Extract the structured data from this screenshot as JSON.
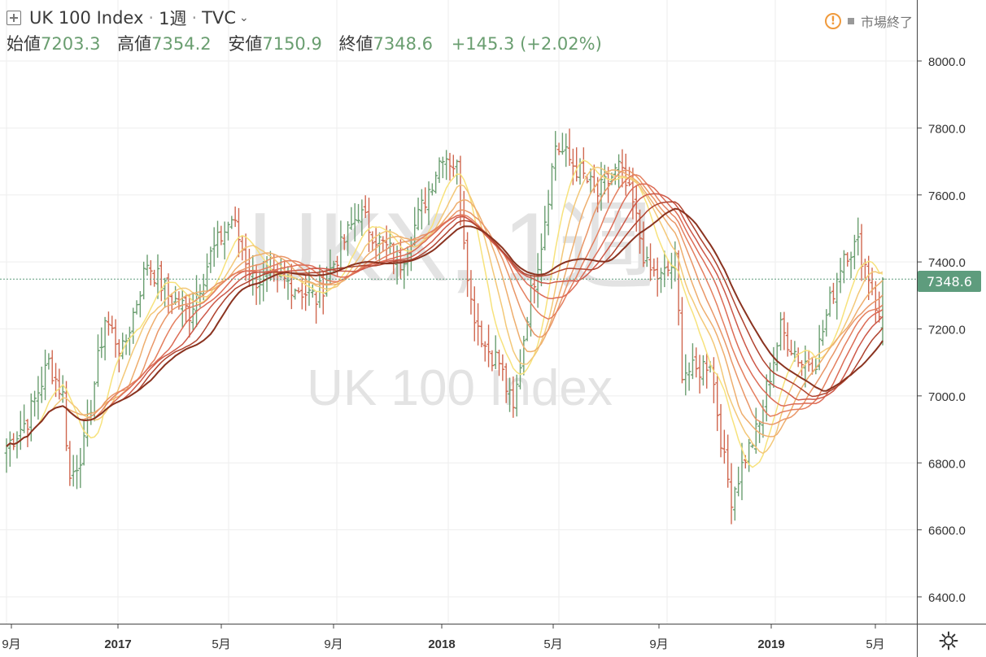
{
  "header": {
    "symbol": "UK 100 Index",
    "interval": "1週",
    "exchange": "TVC",
    "open_label": "始値",
    "open": "7203.3",
    "high_label": "高値",
    "high": "7354.2",
    "low_label": "安値",
    "low": "7150.9",
    "close_label": "終値",
    "close": "7348.6",
    "change": "+145.3 (+2.02%)"
  },
  "status": {
    "text": "市場終了"
  },
  "watermark": {
    "big": "UKX, 1週",
    "small": "UK 100 Index"
  },
  "price_tag": "7348.6",
  "colors": {
    "up": "#6a9e70",
    "down": "#d0674f",
    "last_line": "#5e9c7d",
    "ma_ribbon": [
      "#f7e27c",
      "#f3c878",
      "#eeae6e",
      "#e99667",
      "#e47f5f",
      "#dc6b55",
      "#cd5848",
      "#b0432f",
      "#8a3320"
    ]
  },
  "chart_data": {
    "type": "candlestick-ohlc",
    "ylim": [
      6360,
      8200
    ],
    "y_ticks": [
      "8000.0",
      "7800.0",
      "7600.0",
      "7400.0",
      "7200.0",
      "7000.0",
      "6800.0",
      "6600.0",
      "6400.0"
    ],
    "x_ticks": [
      "9月",
      "2017",
      "5月",
      "9月",
      "2018",
      "5月",
      "9月",
      "2019",
      "5月"
    ],
    "grid": true,
    "last_price": 7348.6,
    "ohlc_keypoints": [
      [
        0,
        6850
      ],
      [
        6,
        6930
      ],
      [
        12,
        7100
      ],
      [
        16,
        7000
      ],
      [
        18,
        6750
      ],
      [
        22,
        6850
      ],
      [
        28,
        7230
      ],
      [
        33,
        7130
      ],
      [
        40,
        7400
      ],
      [
        46,
        7300
      ],
      [
        52,
        7250
      ],
      [
        58,
        7420
      ],
      [
        64,
        7530
      ],
      [
        70,
        7350
      ],
      [
        80,
        7340
      ],
      [
        88,
        7290
      ],
      [
        95,
        7440
      ],
      [
        100,
        7550
      ],
      [
        106,
        7460
      ],
      [
        112,
        7400
      ],
      [
        118,
        7560
      ],
      [
        124,
        7730
      ],
      [
        128,
        7680
      ],
      [
        132,
        7280
      ],
      [
        136,
        7150
      ],
      [
        140,
        7100
      ],
      [
        144,
        6950
      ],
      [
        148,
        7250
      ],
      [
        152,
        7460
      ],
      [
        156,
        7750
      ],
      [
        162,
        7680
      ],
      [
        168,
        7600
      ],
      [
        174,
        7680
      ],
      [
        178,
        7570
      ],
      [
        182,
        7380
      ],
      [
        186,
        7350
      ],
      [
        190,
        7400
      ],
      [
        192,
        7080
      ],
      [
        196,
        7070
      ],
      [
        200,
        7110
      ],
      [
        204,
        6800
      ],
      [
        206,
        6700
      ],
      [
        210,
        6820
      ],
      [
        214,
        6910
      ],
      [
        216,
        7020
      ],
      [
        220,
        7200
      ],
      [
        226,
        7100
      ],
      [
        230,
        7110
      ],
      [
        234,
        7280
      ],
      [
        238,
        7430
      ],
      [
        242,
        7450
      ],
      [
        246,
        7330
      ],
      [
        248,
        7220
      ],
      [
        249,
        7348.6
      ]
    ],
    "ma_periods": [
      10,
      14,
      18,
      22,
      26,
      30,
      34,
      38,
      42
    ]
  }
}
